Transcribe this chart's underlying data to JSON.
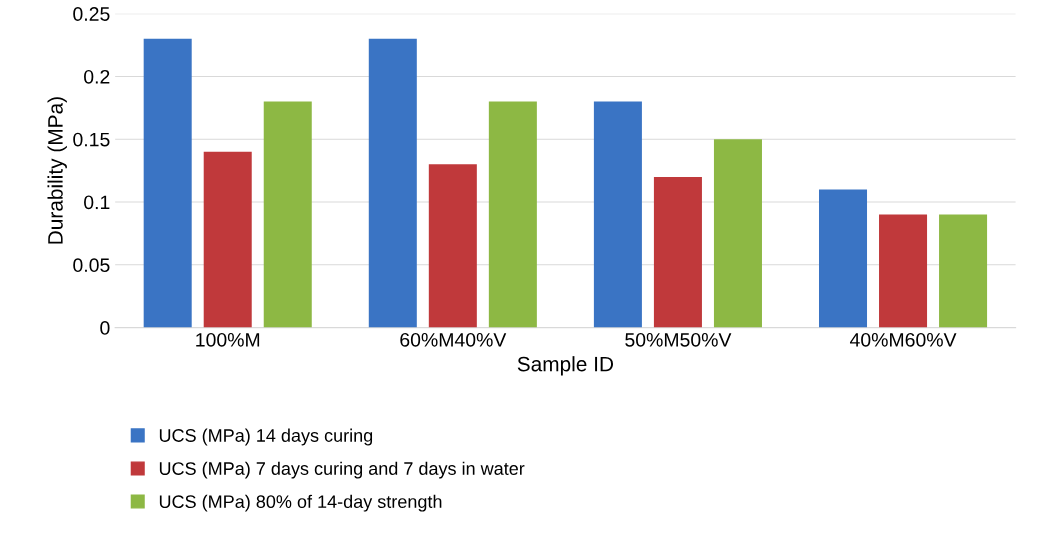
{
  "chart_data": {
    "type": "bar",
    "xlabel": "Sample ID",
    "ylabel": "Durability (MPa)",
    "categories": [
      "100%M",
      "60%M40%V",
      "50%M50%V",
      "40%M60%V"
    ],
    "series": [
      {
        "name": "UCS (MPa) 14 days curing",
        "color": "#3a74c4",
        "values": [
          0.23,
          0.23,
          0.18,
          0.11
        ]
      },
      {
        "name": "UCS (MPa) 7 days curing and 7 days in water",
        "color": "#c0393b",
        "values": [
          0.14,
          0.13,
          0.12,
          0.09
        ]
      },
      {
        "name": "UCS (MPa) 80% of 14-day strength",
        "color": "#8db844",
        "values": [
          0.18,
          0.18,
          0.15,
          0.09
        ]
      }
    ],
    "ylim": [
      0,
      0.25
    ],
    "yticks": [
      0,
      0.05,
      0.1,
      0.15,
      0.2,
      0.25
    ],
    "grid": "y",
    "legend": "bottom"
  }
}
